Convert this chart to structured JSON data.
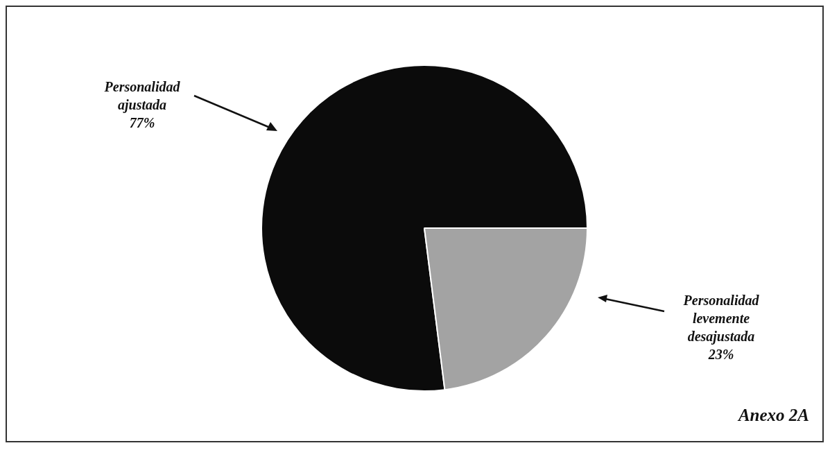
{
  "chart_data": {
    "type": "pie",
    "categories": [
      "Personalidad ajustada",
      "Personalidad levemente desajustada"
    ],
    "values": [
      77,
      23
    ],
    "colors": [
      "#0b0b0b",
      "#a3a3a3"
    ],
    "value_labels": [
      "77%",
      "23%"
    ],
    "legend": false,
    "annotations": [
      "Anexo 2A"
    ]
  }
}
